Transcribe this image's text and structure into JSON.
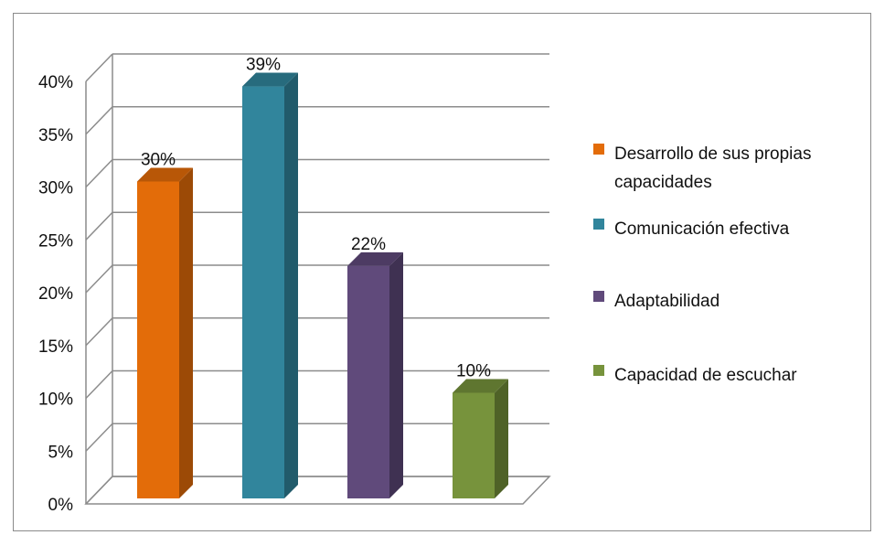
{
  "chart_data": {
    "type": "bar",
    "categories": [
      "Desarrollo de sus propias capacidades",
      "Comunicación efectiva",
      "Adaptabilidad",
      "Capacidad de escuchar"
    ],
    "values": [
      30,
      39,
      22,
      10
    ],
    "data_labels": [
      "30%",
      "39%",
      "22%",
      "10%"
    ],
    "colors": [
      "#E36C09",
      "#31859C",
      "#604A7B",
      "#77933C"
    ],
    "side_colors": [
      "#9C4A06",
      "#215B6B",
      "#3F3152",
      "#4F6227"
    ],
    "top_colors": [
      "#B85707",
      "#276B7D",
      "#4D3B63",
      "#5F7630"
    ],
    "ylim": [
      0,
      40
    ],
    "yticks": [
      "0%",
      "5%",
      "10%",
      "15%",
      "20%",
      "25%",
      "30%",
      "35%",
      "40%"
    ],
    "legend": {
      "position": "right",
      "items": [
        [
          "Desarrollo de sus propias",
          "capacidades"
        ],
        [
          "Comunicación efectiva"
        ],
        [
          "Adaptabilidad"
        ],
        [
          "Capacidad de escuchar"
        ]
      ]
    },
    "grid": true,
    "style": "3d-column"
  }
}
